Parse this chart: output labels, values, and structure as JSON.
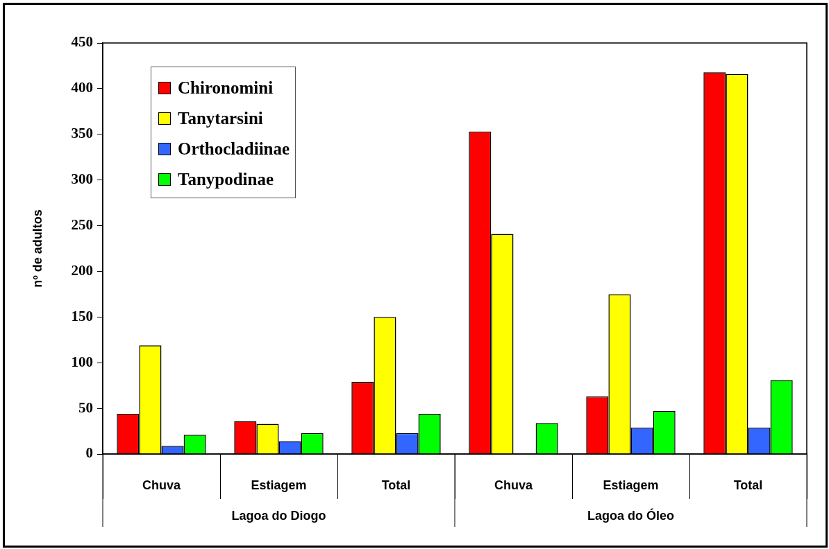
{
  "chart_data": {
    "type": "bar",
    "ylabel": "nº de adultos",
    "categories": [
      "Chuva",
      "Estiagem",
      "Total",
      "Chuva",
      "Estiagem",
      "Total"
    ],
    "series": [
      {
        "name": "Chironomini",
        "color": "#ff0000",
        "values": [
          44,
          36,
          79,
          353,
          63,
          418
        ]
      },
      {
        "name": "Tanytarsini",
        "color": "#ffff00",
        "values": [
          119,
          33,
          150,
          241,
          175,
          416
        ]
      },
      {
        "name": "Orthocladiinae",
        "color": "#3366ff",
        "values": [
          9,
          14,
          23,
          0,
          29,
          29
        ]
      },
      {
        "name": "Tanypodinae",
        "color": "#00ff00",
        "values": [
          21,
          23,
          44,
          34,
          47,
          81
        ]
      }
    ],
    "ylim": [
      0,
      450
    ],
    "yticks": [
      0,
      50,
      100,
      150,
      200,
      250,
      300,
      350,
      400,
      450
    ],
    "grid": false,
    "legend": "top left",
    "annotations": [
      "Lagoa do Diogo",
      "Lagoa do Óleo"
    ]
  }
}
